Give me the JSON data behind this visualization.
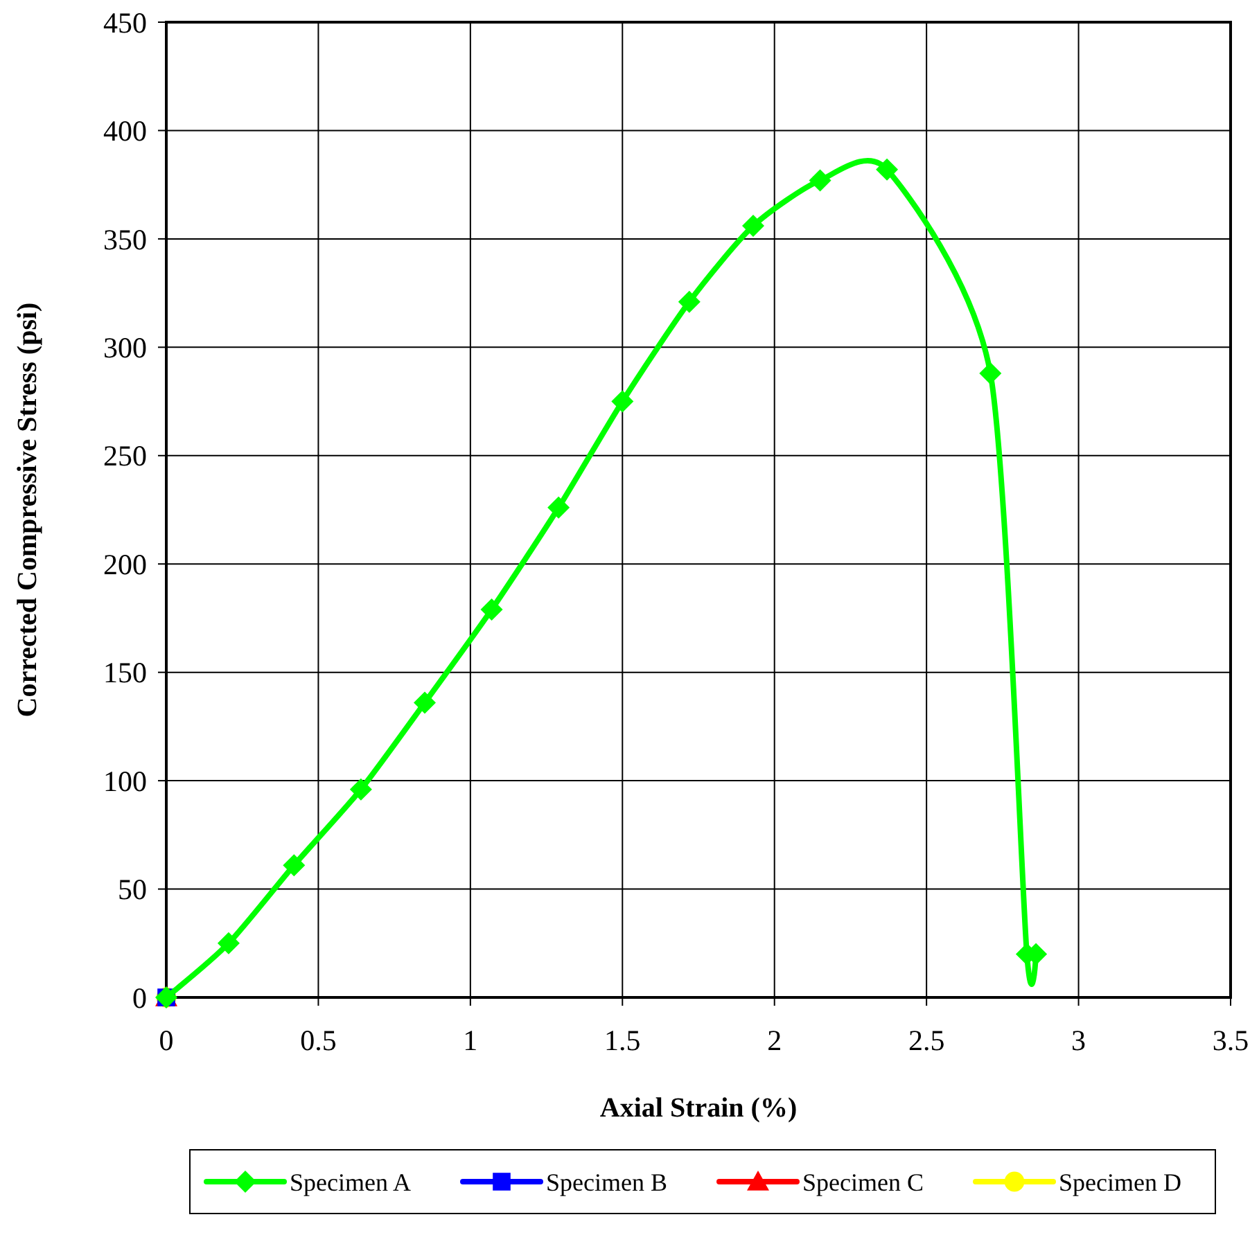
{
  "chart_data": {
    "type": "line",
    "xlabel": "Axial Strain (%)",
    "ylabel": "Corrected Compressive Stress (psi)",
    "xlim": [
      0,
      3.5
    ],
    "xticks": [
      0,
      0.5,
      1,
      1.5,
      2,
      2.5,
      3,
      3.5
    ],
    "ylim": [
      0,
      450
    ],
    "yticks": [
      0,
      50,
      100,
      150,
      200,
      250,
      300,
      350,
      400,
      450
    ],
    "grid": true,
    "legend": "bottom",
    "series": [
      {
        "name": "Specimen A",
        "color": "#00ff00",
        "marker": "diamond",
        "x": [
          0,
          0.205,
          0.42,
          0.64,
          0.85,
          1.07,
          1.29,
          1.5,
          1.72,
          1.93,
          2.15,
          2.37,
          2.71,
          2.83,
          2.86
        ],
        "values": [
          0,
          25,
          61,
          96,
          136,
          179,
          226,
          275,
          321,
          356,
          377,
          382,
          288,
          20,
          20
        ]
      },
      {
        "name": "Specimen B",
        "color": "#0000ff",
        "marker": "square",
        "x": [
          0
        ],
        "values": [
          0
        ]
      },
      {
        "name": "Specimen C",
        "color": "#ff0000",
        "marker": "triangle",
        "x": [
          0
        ],
        "values": [
          0
        ]
      },
      {
        "name": "Specimen D",
        "color": "#ffff00",
        "marker": "circle",
        "x": [
          0
        ],
        "values": [
          0
        ]
      }
    ]
  }
}
